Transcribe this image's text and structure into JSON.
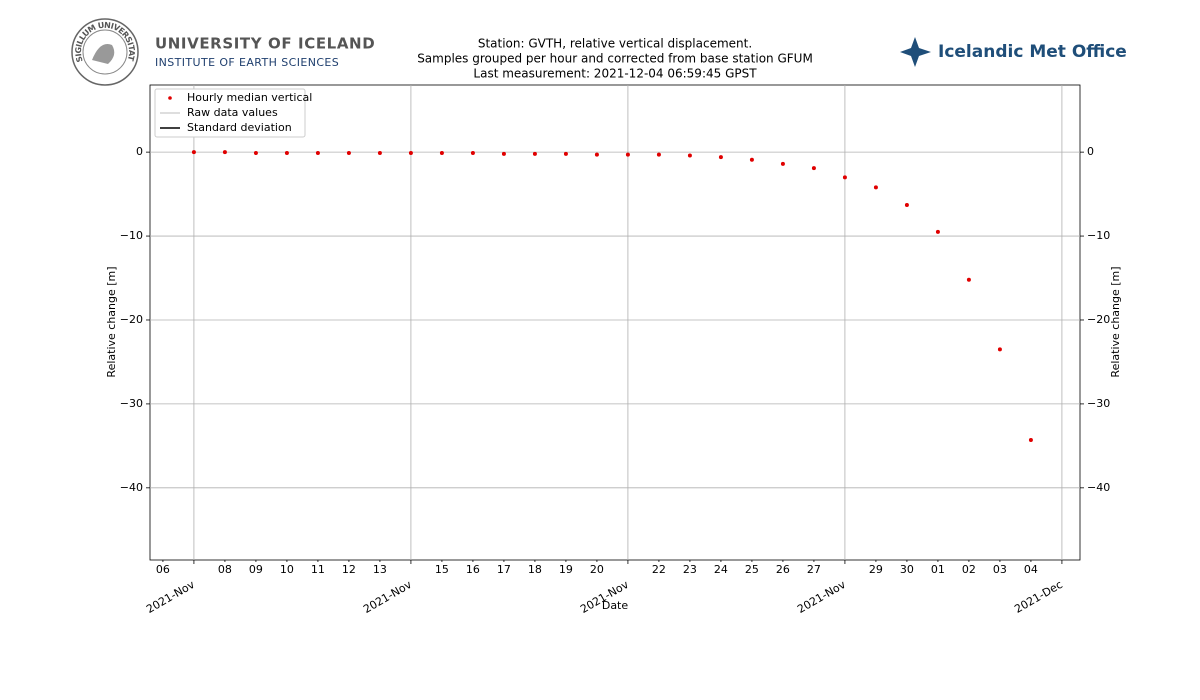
{
  "header": {
    "university": "UNIVERSITY OF ICELAND",
    "institute": "INSTITUTE OF EARTH SCIENCES",
    "seal": "SIGILLUM UNIVERSITATIS ISLANDIAE",
    "met_office": "Icelandic Met Office"
  },
  "chart_data": {
    "type": "scatter",
    "title_lines": [
      "Station: GVTH, relative vertical displacement.",
      "Samples grouped per hour and corrected from base station GFUM",
      "Last measurement: 2021-12-04 06:59:45 GPST"
    ],
    "xlabel": "Date",
    "ylabel": "Relative change [m]",
    "y2label": "Relative change [m]",
    "x": [
      "2021-11-07",
      "2021-11-08",
      "2021-11-09",
      "2021-11-10",
      "2021-11-11",
      "2021-11-12",
      "2021-11-13",
      "2021-11-14",
      "2021-11-15",
      "2021-11-16",
      "2021-11-17",
      "2021-11-18",
      "2021-11-19",
      "2021-11-20",
      "2021-11-21",
      "2021-11-22",
      "2021-11-23",
      "2021-11-24",
      "2021-11-25",
      "2021-11-26",
      "2021-11-27",
      "2021-11-28",
      "2021-11-29",
      "2021-11-30",
      "2021-12-01",
      "2021-12-02",
      "2021-12-03",
      "2021-12-04"
    ],
    "series": [
      {
        "name": "Hourly median vertical",
        "color": "#e00000",
        "values": [
          0,
          0,
          -0.1,
          -0.1,
          -0.1,
          -0.1,
          -0.1,
          -0.1,
          -0.1,
          -0.1,
          -0.2,
          -0.2,
          -0.2,
          -0.3,
          -0.3,
          -0.3,
          -0.4,
          -0.6,
          -0.9,
          -1.4,
          -1.9,
          -3.0,
          -4.2,
          -6.3,
          -9.5,
          -15.2,
          -23.5,
          -34.3
        ]
      }
    ],
    "legend": {
      "loc": "upper left",
      "entries": [
        {
          "name": "Raw data values",
          "color": "#d3d3d3"
        },
        {
          "name": "Standard deviation",
          "color": "#000000"
        }
      ]
    },
    "xlim": [
      "2021-11-05 14:00",
      "2021-12-05 14:00"
    ],
    "xticks": [
      {
        "value": "2021-11-07",
        "label": "2021-Nov"
      },
      {
        "value": "2021-11-14",
        "label": "2021-Nov"
      },
      {
        "value": "2021-11-21",
        "label": "2021-Nov"
      },
      {
        "value": "2021-11-28",
        "label": "2021-Nov"
      },
      {
        "value": "2021-12-05",
        "label": "2021-Dec"
      }
    ],
    "xticks_minor": [
      {
        "value": "2021-11-06",
        "label": "06"
      },
      {
        "value": "2021-11-08",
        "label": "08"
      },
      {
        "value": "2021-11-09",
        "label": "09"
      },
      {
        "value": "2021-11-10",
        "label": "10"
      },
      {
        "value": "2021-11-11",
        "label": "11"
      },
      {
        "value": "2021-11-12",
        "label": "12"
      },
      {
        "value": "2021-11-13",
        "label": "13"
      },
      {
        "value": "2021-11-15",
        "label": "15"
      },
      {
        "value": "2021-11-16",
        "label": "16"
      },
      {
        "value": "2021-11-17",
        "label": "17"
      },
      {
        "value": "2021-11-18",
        "label": "18"
      },
      {
        "value": "2021-11-19",
        "label": "19"
      },
      {
        "value": "2021-11-20",
        "label": "20"
      },
      {
        "value": "2021-11-22",
        "label": "22"
      },
      {
        "value": "2021-11-23",
        "label": "23"
      },
      {
        "value": "2021-11-24",
        "label": "24"
      },
      {
        "value": "2021-11-25",
        "label": "25"
      },
      {
        "value": "2021-11-26",
        "label": "26"
      },
      {
        "value": "2021-11-27",
        "label": "27"
      },
      {
        "value": "2021-11-29",
        "label": "29"
      },
      {
        "value": "2021-11-30",
        "label": "30"
      },
      {
        "value": "2021-12-01",
        "label": "01"
      },
      {
        "value": "2021-12-02",
        "label": "02"
      },
      {
        "value": "2021-12-03",
        "label": "03"
      },
      {
        "value": "2021-12-04",
        "label": "04"
      }
    ],
    "ylim": [
      -48.6,
      8
    ],
    "yticks": [
      0,
      {
        "value": -10,
        "label": "−10"
      },
      {
        "value": -20,
        "label": "−20"
      },
      {
        "value": -30,
        "label": "−30"
      },
      {
        "value": -40,
        "label": "−40"
      }
    ],
    "y2lim": [
      -48.6,
      8
    ],
    "y2ticks": [
      0,
      {
        "value": -10,
        "label": "−10"
      },
      {
        "value": -20,
        "label": "−20"
      },
      {
        "value": -30,
        "label": "−30"
      },
      {
        "value": -40,
        "label": "−40"
      }
    ],
    "grid": true
  }
}
